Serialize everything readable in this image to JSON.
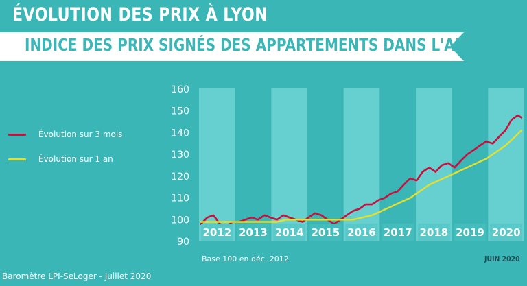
{
  "header": {
    "title": "ÉVOLUTION DES PRIX À LYON",
    "banner": "INDICE DES PRIX SIGNÉS DES APPARTEMENTS DANS L'ANCIEN"
  },
  "footer": {
    "source": "Baromètre LPI-SeLoger - Juillet 2020",
    "date": "JUIN 2020"
  },
  "chart_data": {
    "type": "line",
    "title": "INDICE DES PRIX SIGNÉS DES APPARTEMENTS DANS L'ANCIEN",
    "note": "Base 100 en déc. 2012",
    "ylim": [
      90,
      160
    ],
    "yticks": [
      90,
      100,
      110,
      120,
      130,
      140,
      150,
      160
    ],
    "xlim": [
      2011.95,
      2020.5
    ],
    "years": [
      "2012",
      "2013",
      "2014",
      "2015",
      "2016",
      "2017",
      "2018",
      "2019",
      "2020"
    ],
    "legend_position": "left",
    "grid": false,
    "colors": {
      "background": "#3bb6b6",
      "band_light": "#6ed4d4",
      "band_dark": "#3bb6b6",
      "year_label": "#ffffff",
      "series_3m": "#c8103c",
      "series_1y": "#e6e02a"
    },
    "series": [
      {
        "name": "Évolution sur 3 mois",
        "color": "#c8103c",
        "x": [
          2012.0,
          2012.17,
          2012.33,
          2012.5,
          2012.67,
          2012.83,
          2013.0,
          2013.17,
          2013.33,
          2013.5,
          2013.67,
          2013.83,
          2014.0,
          2014.17,
          2014.33,
          2014.5,
          2014.67,
          2014.83,
          2015.0,
          2015.17,
          2015.33,
          2015.5,
          2015.67,
          2015.83,
          2016.0,
          2016.17,
          2016.33,
          2016.5,
          2016.67,
          2016.83,
          2017.0,
          2017.17,
          2017.33,
          2017.5,
          2017.67,
          2017.83,
          2018.0,
          2018.17,
          2018.33,
          2018.5,
          2018.67,
          2018.83,
          2019.0,
          2019.17,
          2019.33,
          2019.5,
          2019.67,
          2019.83,
          2020.0,
          2020.17,
          2020.33,
          2020.42
        ],
        "y": [
          98,
          101,
          102,
          98,
          97,
          99,
          99,
          100,
          101,
          100,
          102,
          101,
          100,
          102,
          101,
          100,
          99,
          101,
          103,
          102,
          100,
          98,
          100,
          102,
          104,
          105,
          107,
          107,
          109,
          110,
          112,
          113,
          116,
          119,
          118,
          122,
          124,
          122,
          125,
          126,
          124,
          127,
          130,
          132,
          134,
          136,
          135,
          138,
          141,
          146,
          148,
          147
        ]
      },
      {
        "name": "Évolution sur 1 an",
        "color": "#e6e02a",
        "x": [
          2012.0,
          2012.25,
          2012.5,
          2012.75,
          2013.0,
          2013.25,
          2013.5,
          2013.75,
          2014.0,
          2014.25,
          2014.5,
          2014.75,
          2015.0,
          2015.25,
          2015.5,
          2015.75,
          2016.0,
          2016.25,
          2016.5,
          2016.75,
          2017.0,
          2017.25,
          2017.5,
          2017.75,
          2018.0,
          2018.25,
          2018.5,
          2018.75,
          2019.0,
          2019.25,
          2019.5,
          2019.75,
          2020.0,
          2020.25,
          2020.42
        ],
        "y": [
          99,
          99,
          99,
          99,
          99,
          99,
          99,
          99,
          99,
          100,
          100,
          100,
          100,
          100,
          100,
          100,
          100,
          101,
          102,
          104,
          106,
          108,
          110,
          113,
          116,
          118,
          120,
          122,
          124,
          126,
          128,
          131,
          134,
          138,
          141
        ]
      }
    ]
  }
}
